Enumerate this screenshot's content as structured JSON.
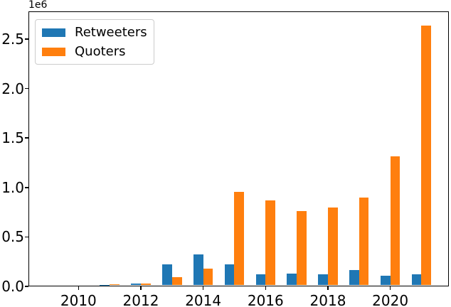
{
  "chart_data": {
    "type": "bar",
    "title": "",
    "xlabel": "",
    "ylabel": "",
    "offset_text": "1e6",
    "grid": false,
    "legend_position": "upper left",
    "categories": [
      2009,
      2010,
      2011,
      2012,
      2013,
      2014,
      2015,
      2016,
      2017,
      2018,
      2019,
      2020,
      2021
    ],
    "series": [
      {
        "name": "Retweeters",
        "color": "#1f77b4",
        "values": [
          0,
          0,
          3000,
          20000,
          215000,
          310000,
          210000,
          113000,
          120000,
          113000,
          158000,
          95000,
          112000
        ]
      },
      {
        "name": "Quoters",
        "color": "#ff7f0e",
        "values": [
          0,
          0,
          8000,
          18000,
          85000,
          170000,
          943000,
          858000,
          752000,
          788000,
          890000,
          1302000,
          2625000
        ]
      }
    ],
    "x_tick_years": [
      2010,
      2012,
      2014,
      2016,
      2018,
      2020
    ],
    "x_tick_labels": [
      "2010",
      "2012",
      "2014",
      "2016",
      "2018",
      "2020"
    ],
    "y_tick_values": [
      0,
      500000,
      1000000,
      1500000,
      2000000,
      2500000
    ],
    "y_tick_labels": [
      "0.0",
      "0.5",
      "1.0",
      "1.5",
      "2.0",
      "2.5"
    ],
    "ylim": [
      0,
      2780000
    ]
  }
}
